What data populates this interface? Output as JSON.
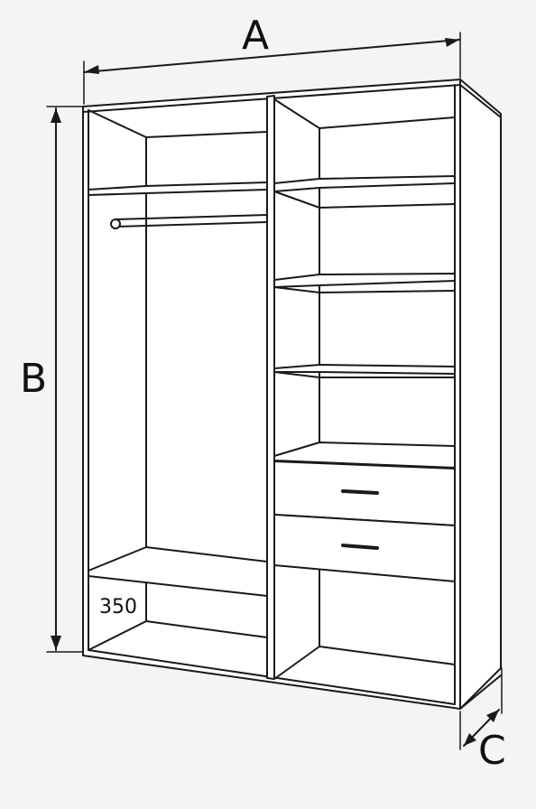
{
  "dimensions": {
    "width_label": "A",
    "height_label": "B",
    "depth_label": "C",
    "inner_depth_value": "350"
  },
  "colors": {
    "line": "#1a1a1a",
    "background": "#f4f4f4",
    "panel": "#ffffff"
  }
}
